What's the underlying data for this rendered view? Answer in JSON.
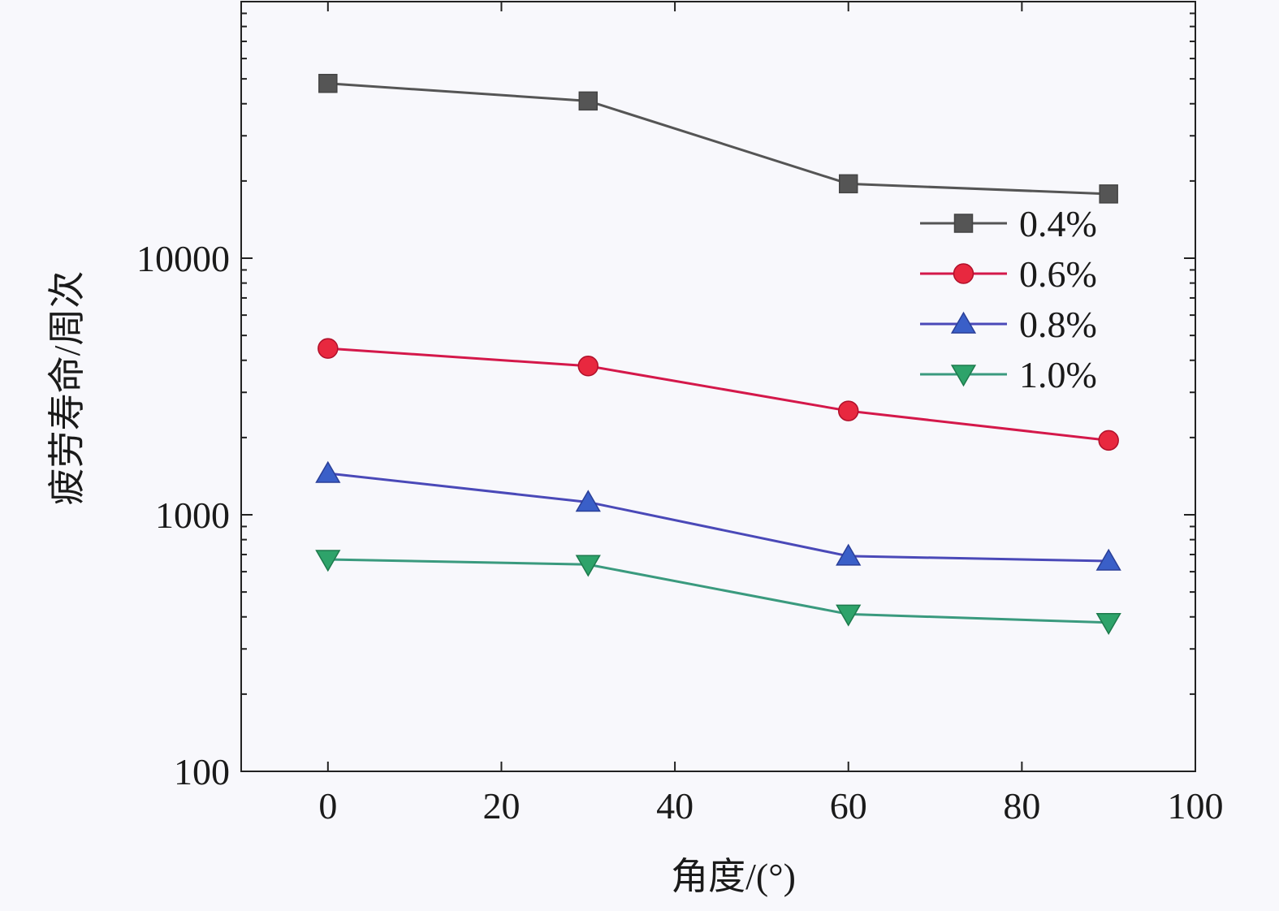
{
  "chart_data": {
    "type": "line",
    "xlabel": "角度/(°)",
    "ylabel": "疲劳寿命/周次",
    "xlim": [
      -10,
      100
    ],
    "ylim": [
      100,
      100000
    ],
    "y_scale": "log",
    "x_ticks": [
      0,
      20,
      40,
      60,
      80,
      100
    ],
    "x_tick_labels": [
      "0",
      "20",
      "40",
      "60",
      "80",
      "100"
    ],
    "y_ticks": [
      100,
      1000,
      10000
    ],
    "y_tick_labels": [
      "100",
      "1000",
      "10000"
    ],
    "grid": false,
    "legend_position": "upper-right",
    "x": [
      0,
      30,
      60,
      90
    ],
    "series": [
      {
        "name": "0.4%",
        "marker": "square",
        "color": "#555555",
        "line_color": "#555555",
        "values": [
          48000,
          41000,
          19500,
          17800
        ]
      },
      {
        "name": "0.6%",
        "marker": "circle",
        "color": "#e8283f",
        "line_color": "#d4184a",
        "values": [
          4450,
          3800,
          2540,
          1950
        ]
      },
      {
        "name": "0.8%",
        "marker": "triangle-up",
        "color": "#3a5fc8",
        "line_color": "#4a49b8",
        "values": [
          1450,
          1120,
          690,
          660
        ]
      },
      {
        "name": "1.0%",
        "marker": "triangle-down",
        "color": "#2ea36a",
        "line_color": "#3a9a7e",
        "values": [
          670,
          640,
          410,
          380
        ]
      }
    ]
  }
}
